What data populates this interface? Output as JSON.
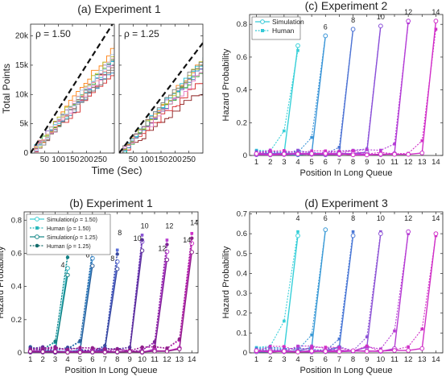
{
  "chart_data": [
    {
      "id": "a",
      "type": "line",
      "title": "(a) Experiment 1",
      "ylabel": "Total Points",
      "xlabel": "Time (Sec)",
      "ylim": [
        0,
        22000
      ],
      "yticks": [
        0,
        5000,
        10000,
        15000,
        20000
      ],
      "yticklabels": [
        "0",
        "5k",
        "10k",
        "15k",
        "20k"
      ],
      "panels": [
        {
          "annotation": "ρ = 1.50",
          "xlim": [
            0,
            300
          ],
          "xticks": [
            50,
            100,
            150,
            200,
            250
          ],
          "xticklabels": [
            "50",
            "100",
            "150",
            "200",
            "250"
          ],
          "reference_line": {
            "style": "dashed",
            "color": "#111111",
            "x": [
              0,
              300
            ],
            "y": [
              0,
              22500
            ]
          },
          "series": [
            {
              "color": "#1f77b4",
              "x": [
                0,
                300
              ],
              "y": [
                0,
                15000
              ]
            },
            {
              "color": "#d62728",
              "x": [
                0,
                300
              ],
              "y": [
                0,
                14000
              ]
            },
            {
              "color": "#ff7f0e",
              "x": [
                0,
                300
              ],
              "y": [
                0,
                18500
              ]
            },
            {
              "color": "#2ca02c",
              "x": [
                0,
                300
              ],
              "y": [
                0,
                16500
              ]
            },
            {
              "color": "#9467bd",
              "x": [
                0,
                300
              ],
              "y": [
                0,
                17000
              ]
            },
            {
              "color": "#8c564b",
              "x": [
                0,
                300
              ],
              "y": [
                0,
                15800
              ]
            },
            {
              "color": "#17becf",
              "x": [
                0,
                300
              ],
              "y": [
                0,
                16000
              ]
            },
            {
              "color": "#e377c2",
              "x": [
                0,
                300
              ],
              "y": [
                0,
                15500
              ]
            },
            {
              "color": "#bcbd22",
              "x": [
                0,
                300
              ],
              "y": [
                0,
                17500
              ]
            },
            {
              "color": "#7f7f7f",
              "x": [
                0,
                300
              ],
              "y": [
                0,
                14800
              ]
            },
            {
              "color": "#ff9896",
              "x": [
                0,
                300
              ],
              "y": [
                0,
                16800
              ]
            },
            {
              "color": "#aec7e8",
              "x": [
                0,
                300
              ],
              "y": [
                0,
                17200
              ]
            }
          ]
        },
        {
          "annotation": "ρ = 1.25",
          "xlim": [
            0,
            300
          ],
          "xticks": [
            50,
            100,
            150,
            200,
            250
          ],
          "xticklabels": [
            "50",
            "100",
            "150",
            "200",
            "250"
          ],
          "reference_line": {
            "style": "dashed",
            "color": "#111111",
            "x": [
              0,
              300
            ],
            "y": [
              0,
              18800
            ]
          },
          "series": [
            {
              "color": "#8b1a1a",
              "x": [
                0,
                300
              ],
              "y": [
                0,
                11000
              ]
            },
            {
              "color": "#d62728",
              "x": [
                0,
                300
              ],
              "y": [
                0,
                12500
              ]
            },
            {
              "color": "#1f77b4",
              "x": [
                0,
                300
              ],
              "y": [
                0,
                15000
              ]
            },
            {
              "color": "#ff7f0e",
              "x": [
                0,
                300
              ],
              "y": [
                0,
                16000
              ]
            },
            {
              "color": "#2ca02c",
              "x": [
                0,
                300
              ],
              "y": [
                0,
                14500
              ]
            },
            {
              "color": "#9467bd",
              "x": [
                0,
                300
              ],
              "y": [
                0,
                15500
              ]
            },
            {
              "color": "#17becf",
              "x": [
                0,
                300
              ],
              "y": [
                0,
                16200
              ]
            },
            {
              "color": "#bcbd22",
              "x": [
                0,
                300
              ],
              "y": [
                0,
                15800
              ]
            },
            {
              "color": "#e377c2",
              "x": [
                0,
                300
              ],
              "y": [
                0,
                14000
              ]
            },
            {
              "color": "#7f7f7f",
              "x": [
                0,
                300
              ],
              "y": [
                0,
                16400
              ]
            }
          ]
        }
      ]
    },
    {
      "id": "b",
      "type": "line",
      "title": "(b) Experiment 1",
      "ylabel": "Hazard Probability",
      "xlabel": "Position In Long Queue",
      "ylim": [
        0,
        0.85
      ],
      "yticks": [
        0,
        0.2,
        0.4,
        0.6,
        0.8
      ],
      "yticklabels": [
        "0",
        "0.2",
        "0.4",
        "0.6",
        "0.8"
      ],
      "xlim": [
        0.5,
        14.5
      ],
      "xticks": [
        1,
        2,
        3,
        4,
        5,
        6,
        7,
        8,
        9,
        10,
        11,
        12,
        13,
        14
      ],
      "legend": {
        "position": "top-left",
        "entries": [
          {
            "label": "Simulation(ρ = 1.50)",
            "color": "#3fd0d4",
            "style": "solid",
            "marker": "open-circle"
          },
          {
            "label": "Human (ρ = 1.50)",
            "color": "#2ab7bb",
            "style": "dotted",
            "marker": "square"
          },
          {
            "label": "Simulation(ρ = 1.25)",
            "color": "#1a8a8a",
            "style": "solid",
            "marker": "open-circle"
          },
          {
            "label": "Human (ρ = 1.25)",
            "color": "#136b6b",
            "style": "dotted",
            "marker": "filled-circle"
          }
        ]
      },
      "groups": [
        {
          "length": 4,
          "color": "#2fb5c0",
          "peak_label": "4",
          "label_value": 0.64,
          "sim": 0.51,
          "hum": 0.6,
          "dark": "#127f82"
        },
        {
          "length": 6,
          "color": "#3b8fd0",
          "peak_label": "6",
          "label_value": 0.69,
          "sim": 0.57,
          "hum": 0.63,
          "dark": "#2a5f9a"
        },
        {
          "length": 8,
          "color": "#5b6fd8",
          "peak_label": "8",
          "label_value": 0.69,
          "sim": 0.55,
          "hum": 0.62,
          "dark": "#3a4aa0"
        },
        {
          "length": 10,
          "color": "#8a55d4",
          "peak_label": "10",
          "label_value": 0.73,
          "sim": 0.67,
          "hum": 0.71,
          "dark": "#5a2f9a"
        },
        {
          "length": 12,
          "color": "#b83ed0",
          "peak_label": "12",
          "label_value": 0.73,
          "sim": 0.61,
          "hum": 0.68,
          "dark": "#7d2296"
        },
        {
          "length": 14,
          "color": "#d02fc8",
          "peak_label": "14",
          "label_value": 0.75,
          "sim": 0.66,
          "hum": 0.72,
          "dark": "#8f1f8a"
        }
      ]
    },
    {
      "id": "c",
      "type": "line",
      "title": "(c) Experiment 2",
      "ylabel": "Hazard Probability",
      "xlabel": "Position In Long Queue",
      "ylim": [
        0,
        0.86
      ],
      "yticks": [
        0,
        0.2,
        0.4,
        0.6,
        0.8
      ],
      "yticklabels": [
        "0",
        "0.2",
        "0.4",
        "0.6",
        "0.8"
      ],
      "xlim": [
        0.5,
        14.5
      ],
      "xticks": [
        1,
        2,
        3,
        4,
        5,
        6,
        7,
        8,
        9,
        10,
        11,
        12,
        13,
        14
      ],
      "legend": {
        "position": "top-left",
        "entries": [
          {
            "label": "Simulation",
            "color": "#35c9d6",
            "style": "solid",
            "marker": "open-circle"
          },
          {
            "label": "Human",
            "color": "#35c9d6",
            "style": "dotted",
            "marker": "square"
          }
        ]
      },
      "groups": [
        {
          "length": 4,
          "color": "#38d0d8",
          "peak_label": "4",
          "label_value": 0.7,
          "sim": 0.67,
          "hum": 0.64,
          "pre_human_peak": 0.15
        },
        {
          "length": 6,
          "color": "#3a95d8",
          "peak_label": "6",
          "label_value": 0.75,
          "sim": 0.73,
          "hum": 0.73,
          "pre_human_peak": 0.11
        },
        {
          "length": 8,
          "color": "#4d73d4",
          "peak_label": "8",
          "label_value": 0.79,
          "sim": 0.77,
          "hum": 0.77,
          "pre_human_peak": 0.05
        },
        {
          "length": 10,
          "color": "#8a4fd8",
          "peak_label": "10",
          "label_value": 0.81,
          "sim": 0.79,
          "hum": 0.79,
          "pre_human_peak": 0.04
        },
        {
          "length": 12,
          "color": "#b43cd6",
          "peak_label": "12",
          "label_value": 0.84,
          "sim": 0.82,
          "hum": 0.81,
          "pre_human_peak": 0.07
        },
        {
          "length": 14,
          "color": "#d12ec8",
          "peak_label": "14",
          "label_value": 0.84,
          "sim": 0.82,
          "hum": 0.77,
          "pre_human_peak": 0.09
        }
      ]
    },
    {
      "id": "d",
      "type": "line",
      "title": "(d) Experiment 3",
      "ylabel": "Hazard Probability",
      "xlabel": "Position In Long Queue",
      "ylim": [
        0,
        0.71
      ],
      "yticks": [
        0,
        0.1,
        0.2,
        0.3,
        0.4,
        0.5,
        0.6,
        0.7
      ],
      "yticklabels": [
        "0",
        "0.1",
        "0.2",
        "0.3",
        "0.4",
        "0.5",
        "0.6",
        "0.7"
      ],
      "xlim": [
        0.5,
        14.5
      ],
      "xticks": [
        1,
        2,
        3,
        4,
        5,
        6,
        7,
        8,
        9,
        10,
        11,
        12,
        13,
        14
      ],
      "groups": [
        {
          "length": 4,
          "color": "#36cfd9",
          "peak_label": "4",
          "label_value": 0.65,
          "sim": 0.59,
          "hum": 0.61,
          "pre_human_peak": 0.16
        },
        {
          "length": 6,
          "color": "#3a9ad6",
          "peak_label": "6",
          "label_value": 0.65,
          "sim": 0.62,
          "hum": 0.62,
          "pre_human_peak": 0.09
        },
        {
          "length": 8,
          "color": "#4a78d6",
          "peak_label": "8",
          "label_value": 0.65,
          "sim": 0.59,
          "hum": 0.61,
          "pre_human_peak": 0.07
        },
        {
          "length": 10,
          "color": "#8f56d6",
          "peak_label": "10",
          "label_value": 0.65,
          "sim": 0.6,
          "hum": 0.61,
          "pre_human_peak": 0.08
        },
        {
          "length": 12,
          "color": "#b63bd3",
          "peak_label": "12",
          "label_value": 0.65,
          "sim": 0.61,
          "hum": 0.6,
          "pre_human_peak": 0.11
        },
        {
          "length": 14,
          "color": "#d02fc7",
          "peak_label": "14",
          "label_value": 0.65,
          "sim": 0.6,
          "hum": 0.59,
          "pre_human_peak": 0.12
        }
      ]
    }
  ]
}
